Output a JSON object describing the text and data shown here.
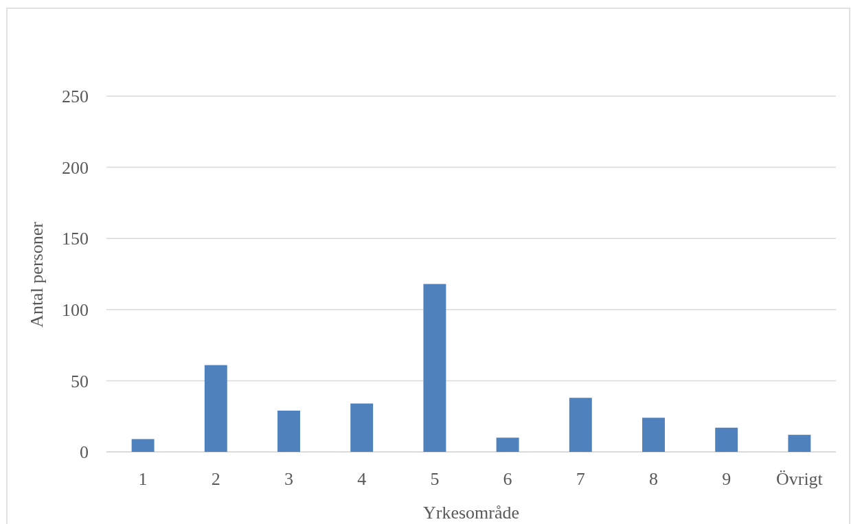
{
  "chart_data": {
    "type": "bar",
    "xlabel": "Yrkesområde",
    "ylabel": "Antal personer",
    "categories": [
      "1",
      "2",
      "3",
      "4",
      "5",
      "6",
      "7",
      "8",
      "9",
      "Övrigt"
    ],
    "values": [
      9,
      61,
      29,
      34,
      118,
      10,
      38,
      24,
      17,
      12
    ],
    "color": "#4f81bd",
    "ylim": [
      0,
      250
    ],
    "yticks": [
      0,
      50,
      100,
      150,
      200,
      250
    ],
    "grid": "y"
  }
}
